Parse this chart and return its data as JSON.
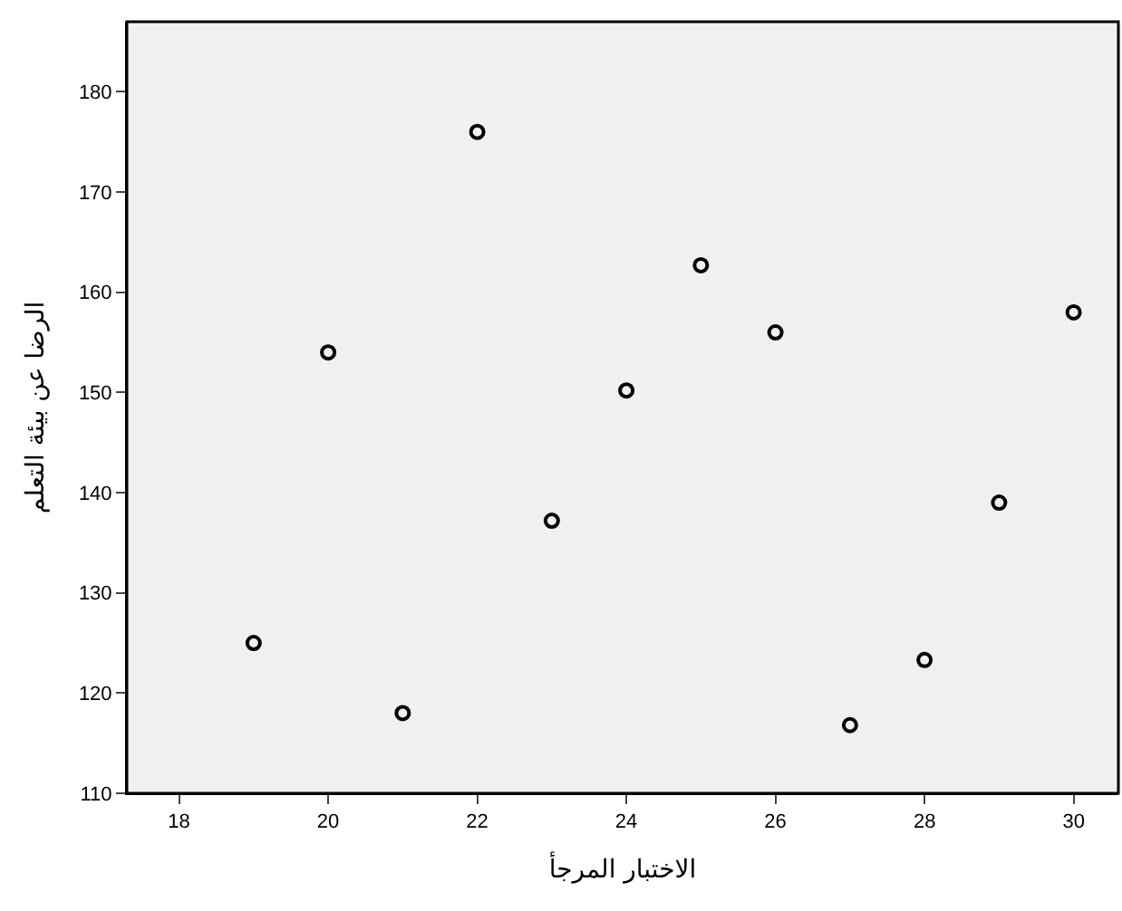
{
  "chart_data": {
    "type": "scatter",
    "xlabel": "الاختبار المرجأ",
    "ylabel": "الرضا عن بيئة التعلم",
    "x": [
      19,
      20,
      21,
      22,
      23,
      24,
      25,
      26,
      27,
      28,
      29,
      30
    ],
    "series": [
      {
        "color": "#000000",
        "values": [
          125,
          154,
          118,
          176,
          137.2,
          150.2,
          162.7,
          156,
          116.8,
          123.3,
          139,
          158
        ]
      }
    ],
    "xlim": [
      17.3,
      30.6
    ],
    "ylim": [
      110,
      187
    ],
    "xticks": [
      18,
      20,
      22,
      24,
      26,
      28,
      30
    ],
    "yticks": [
      110,
      120,
      130,
      140,
      150,
      160,
      170,
      180
    ],
    "marker": "circle",
    "grid": false,
    "legend": false
  }
}
